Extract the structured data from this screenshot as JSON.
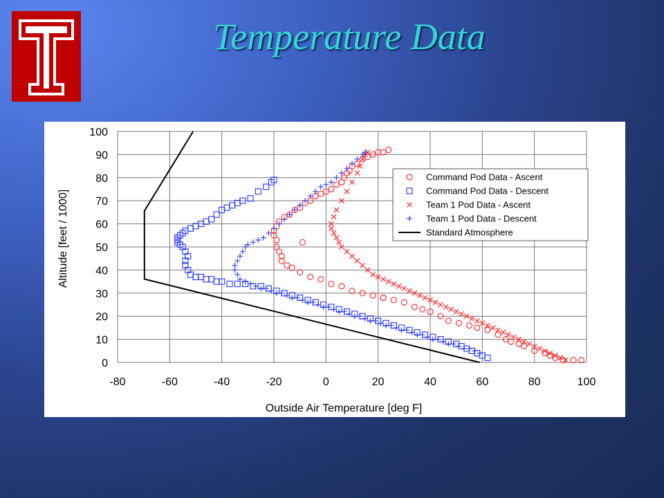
{
  "slide": {
    "title": "Temperature Data",
    "background_colors": [
      "#5a86f0",
      "#2b4590",
      "#1a2c57"
    ],
    "title_color": "#33d6d6",
    "logo": {
      "icon": "temple-t-logo",
      "color": "#c00000"
    }
  },
  "chart_data": {
    "type": "scatter",
    "xlabel": "Outside Air Temperature [deg F]",
    "ylabel": "Altitude [feet / 1000]",
    "xlim": [
      -80,
      100
    ],
    "ylim": [
      0,
      100
    ],
    "xticks": [
      -80,
      -60,
      -40,
      -20,
      0,
      20,
      40,
      60,
      80,
      100
    ],
    "yticks": [
      0,
      10,
      20,
      30,
      40,
      50,
      60,
      70,
      80,
      90,
      100
    ],
    "grid": true,
    "legend_position": "top-right",
    "series": [
      {
        "name": "Command Pod Data - Ascent",
        "marker": "circle",
        "color": "#ff3333",
        "x": [
          98,
          95,
          91,
          88,
          86,
          84,
          80,
          76,
          74,
          71,
          69,
          66,
          62,
          58,
          55,
          51,
          47,
          44,
          40,
          37,
          34,
          30,
          26,
          22,
          18,
          14,
          10,
          6,
          2,
          -2,
          -6,
          -10,
          -13,
          -15,
          -17,
          -17,
          -18,
          -19,
          -19,
          -20,
          -20,
          -19,
          -18,
          -16,
          -14,
          -12,
          -10,
          -8,
          -6,
          -4,
          -2,
          0,
          2,
          4,
          6,
          7,
          8,
          9,
          10,
          12,
          14,
          16,
          18,
          20,
          22,
          24,
          -9,
          22
        ],
        "y": [
          1,
          1,
          1,
          2,
          3,
          4,
          5,
          7,
          8,
          9,
          10,
          12,
          14,
          15,
          16,
          17,
          18,
          20,
          22,
          23,
          24,
          26,
          27,
          28,
          29,
          30,
          31,
          33,
          34,
          36,
          37,
          39,
          41,
          42,
          44,
          46,
          48,
          50,
          53,
          55,
          57,
          59,
          61,
          63,
          64,
          66,
          67,
          69,
          70,
          72,
          73,
          74,
          75,
          77,
          78,
          80,
          82,
          83,
          85,
          86,
          88,
          89,
          90,
          91,
          91,
          92,
          52,
          28
        ]
      },
      {
        "name": "Command Pod Data - Descent",
        "marker": "square",
        "color": "#3344ff",
        "x": [
          62,
          60,
          58,
          56,
          54,
          52,
          50,
          47,
          44,
          41,
          38,
          35,
          32,
          29,
          26,
          23,
          20,
          17,
          14,
          11,
          8,
          5,
          2,
          -1,
          -4,
          -7,
          -10,
          -13,
          -16,
          -19,
          -22,
          -25,
          -28,
          -31,
          -34,
          -37,
          -40,
          -42,
          -44,
          -46,
          -48,
          -50,
          -52,
          -53,
          -54,
          -54,
          -53,
          -54,
          -55,
          -56,
          -57,
          -57,
          -56,
          -55,
          -54,
          -52,
          -50,
          -48,
          -46,
          -44,
          -42,
          -40,
          -38,
          -36,
          -34,
          -32,
          -29,
          -26,
          -23,
          -21,
          -20,
          -57
        ],
        "y": [
          2,
          3,
          4,
          5,
          6,
          7,
          8,
          9,
          10,
          11,
          12,
          13,
          14,
          15,
          16,
          17,
          18,
          19,
          20,
          21,
          22,
          23,
          24,
          25,
          26,
          27,
          28,
          29,
          30,
          31,
          32,
          33,
          33,
          34,
          34,
          34,
          35,
          35,
          36,
          36,
          37,
          37,
          38,
          40,
          42,
          44,
          46,
          48,
          50,
          51,
          52,
          54,
          55,
          56,
          57,
          58,
          59,
          60,
          61,
          62,
          64,
          66,
          67,
          68,
          69,
          70,
          71,
          74,
          76,
          78,
          79,
          53
        ]
      },
      {
        "name": "Team 1 Pod Data - Ascent",
        "marker": "x",
        "color": "#ff2222",
        "x": [
          92,
          90,
          88,
          86,
          84,
          82,
          80,
          78,
          76,
          74,
          72,
          70,
          68,
          66,
          64,
          62,
          60,
          58,
          56,
          54,
          52,
          50,
          48,
          46,
          44,
          42,
          40,
          38,
          36,
          34,
          32,
          30,
          28,
          26,
          24,
          22,
          20,
          18,
          16,
          14,
          12,
          10,
          8,
          6,
          5,
          4,
          3,
          2,
          2,
          3,
          4,
          6,
          8,
          10,
          12,
          13,
          14,
          15,
          16
        ],
        "y": [
          1,
          2,
          3,
          4,
          5,
          6,
          7,
          8,
          9,
          10,
          11,
          12,
          13,
          14,
          15,
          16,
          17,
          18,
          19,
          20,
          21,
          22,
          23,
          24,
          25,
          26,
          27,
          28,
          29,
          30,
          31,
          32,
          33,
          34,
          35,
          36,
          37,
          38,
          40,
          42,
          44,
          46,
          48,
          50,
          52,
          54,
          56,
          58,
          60,
          63,
          66,
          70,
          74,
          78,
          82,
          85,
          88,
          90,
          91
        ]
      },
      {
        "name": "Team 1 Pod Data - Descent",
        "marker": "plus",
        "color": "#3344ff",
        "x": [
          59,
          57,
          55,
          53,
          51,
          49,
          47,
          45,
          43,
          41,
          39,
          37,
          35,
          33,
          31,
          29,
          27,
          25,
          23,
          21,
          19,
          17,
          15,
          13,
          11,
          9,
          7,
          5,
          3,
          1,
          -1,
          -3,
          -5,
          -7,
          -9,
          -11,
          -13,
          -15,
          -17,
          -19,
          -21,
          -23,
          -25,
          -27,
          -29,
          -31,
          -33,
          -34,
          -35,
          -35,
          -34,
          -33,
          -32,
          -31,
          -30,
          -28,
          -26,
          -24,
          -22,
          -20,
          -18,
          -16,
          -14,
          -12,
          -10,
          -8,
          -6,
          -4,
          -2,
          0,
          2,
          4,
          6,
          8,
          10,
          12,
          14,
          15
        ],
        "y": [
          4,
          5,
          6,
          6,
          7,
          8,
          8,
          9,
          10,
          10,
          11,
          12,
          12,
          13,
          14,
          14,
          15,
          16,
          16,
          17,
          18,
          18,
          19,
          20,
          20,
          21,
          22,
          22,
          23,
          24,
          24,
          25,
          26,
          26,
          27,
          28,
          28,
          29,
          30,
          30,
          31,
          32,
          32,
          33,
          34,
          35,
          36,
          38,
          40,
          42,
          44,
          46,
          48,
          50,
          51,
          52,
          53,
          54,
          56,
          58,
          60,
          62,
          64,
          66,
          68,
          70,
          72,
          74,
          76,
          77,
          78,
          80,
          82,
          84,
          86,
          88,
          90,
          91
        ]
      },
      {
        "name": "Standard Atmosphere",
        "marker": "line",
        "color": "#000000",
        "x": [
          59,
          -69.7,
          -69.7,
          -51
        ],
        "y": [
          0,
          36.1,
          65.6,
          100
        ]
      }
    ]
  }
}
